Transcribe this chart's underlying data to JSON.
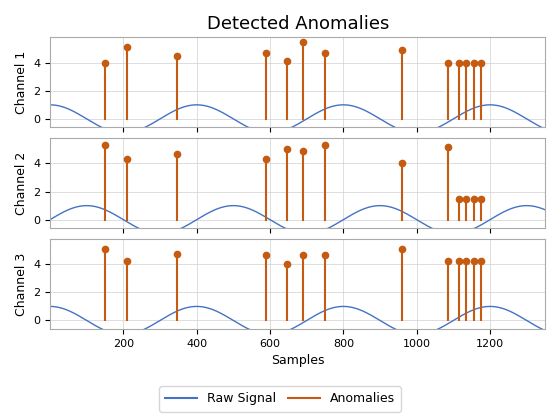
{
  "title": "Detected Anomalies",
  "xlabel": "Samples",
  "ylabels": [
    "Channel 1",
    "Channel 2",
    "Channel 3"
  ],
  "n_samples": 1350,
  "signal_color": "#4472C4",
  "anomaly_color": "#C55A11",
  "background_color": "#ffffff",
  "grid_color": "#d0d0d0",
  "signal_period": 400,
  "ylim": [
    -0.6,
    5.8
  ],
  "yticks": [
    0,
    2,
    4
  ],
  "xticks": [
    200,
    400,
    600,
    800,
    1000,
    1200
  ],
  "anomaly_positions": {
    "ch1": [
      150,
      210,
      345,
      590,
      645,
      690,
      750,
      960,
      1085,
      1115,
      1135,
      1155,
      1175
    ],
    "ch2": [
      150,
      210,
      345,
      590,
      645,
      690,
      750,
      960,
      1085,
      1115,
      1135,
      1155,
      1175
    ],
    "ch3": [
      150,
      210,
      345,
      590,
      645,
      690,
      750,
      960,
      1085,
      1115,
      1135,
      1155,
      1175
    ]
  },
  "anomaly_heights": {
    "ch1": [
      4.0,
      5.1,
      4.45,
      4.7,
      4.1,
      5.5,
      4.7,
      4.9,
      4.0,
      4.0,
      4.0,
      4.0,
      4.0
    ],
    "ch2": [
      5.3,
      4.3,
      4.7,
      4.3,
      5.0,
      4.9,
      5.3,
      4.0,
      5.2,
      1.5,
      1.5,
      1.5,
      1.5
    ],
    "ch3": [
      5.1,
      4.2,
      4.7,
      4.65,
      4.0,
      4.65,
      4.65,
      5.1,
      4.2,
      4.2,
      4.2,
      4.2,
      4.2
    ]
  },
  "phase_offsets": [
    0.0,
    0.0,
    0.0
  ],
  "ch1_amplitude": 1.0,
  "ch2_amplitude": 1.0,
  "ch3_amplitude": 1.0,
  "ch1_abs": false,
  "ch2_abs": false,
  "ch3_abs": false
}
